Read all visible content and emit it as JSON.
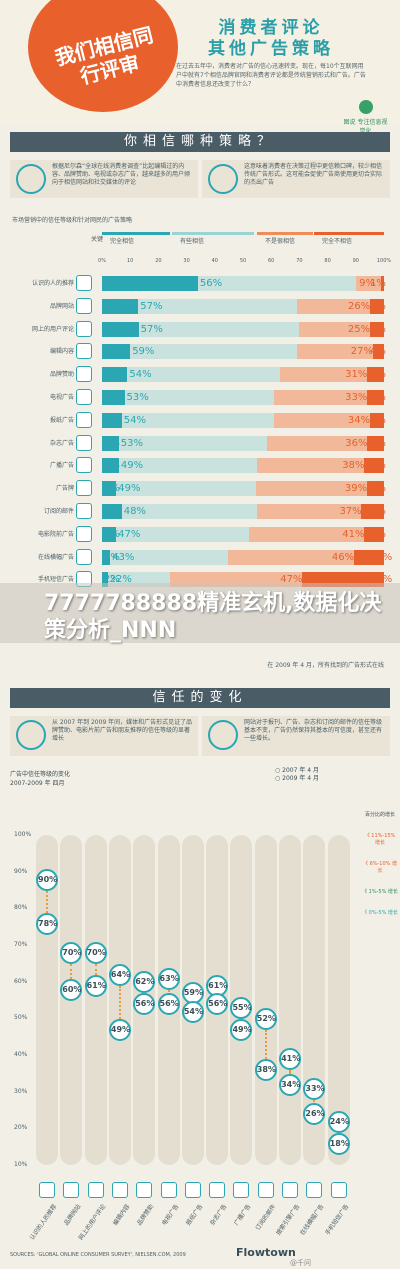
{
  "header": {
    "badge": "我们相信同行评审",
    "title_line1": "消费者评论",
    "title_line2": "其他广告策略",
    "desc": "在过去五年中，消费者对广告的信心迅速转变。现在，每10个互联网用户中就有7个相信品牌官网和消费者评论都是传统营销形式和广告。广告中消费者信息还改变了什么？",
    "logo": "图说 专注信息视觉化"
  },
  "section1": {
    "band_title": "你相信哪种策略？",
    "intro_left": "根据尼尔森“全球在线消费者调查”比起编辑过的内容、品牌赞助、电视或杂志广告，越来越多的用户倾向于相信网站和社交媒体的评论",
    "intro_right": "这意味着消费者在决策过程中更信赖口碑，较少相信传统广告形式。这可能会促使广告商使用更切合实际的杰出广告",
    "chart_label": "市场营销中的信任等级和针对网民的广告策略",
    "legend_key": "关键",
    "legend": [
      "完全相信",
      "有些相信",
      "不是很相信",
      "完全不相信"
    ],
    "scale": [
      "0%",
      "10",
      "20",
      "30",
      "40",
      "50",
      "60",
      "70",
      "80",
      "90",
      "100%"
    ],
    "footnote": "在 2009 年 4 月，所有找到的广告形式在线"
  },
  "chart_data": [
    {
      "type": "bar",
      "stacked": true,
      "orientation": "horizontal",
      "title": "市场营销中的信任等级和针对网民的广告策略",
      "series_names": [
        "完全相信",
        "有些相信",
        "不是很相信",
        "完全不相信"
      ],
      "colors": [
        "#2aa7b3",
        "#9ad3d3",
        "#f08c5a",
        "#e8602c"
      ],
      "xlim": [
        0,
        100
      ],
      "rows": [
        {
          "label": "认识的人的推荐",
          "values": [
            34,
            56,
            9,
            1
          ]
        },
        {
          "label": "品牌网站",
          "values": [
            13,
            57,
            26,
            5
          ]
        },
        {
          "label": "网上的用户评论",
          "values": [
            13,
            57,
            25,
            5
          ]
        },
        {
          "label": "编辑内容",
          "values": [
            10,
            59,
            27,
            4
          ]
        },
        {
          "label": "品牌赞助",
          "values": [
            9,
            54,
            31,
            6
          ]
        },
        {
          "label": "电视广告",
          "values": [
            8,
            53,
            33,
            6
          ]
        },
        {
          "label": "报纸广告",
          "values": [
            7,
            54,
            34,
            5
          ]
        },
        {
          "label": "杂志广告",
          "values": [
            6,
            53,
            36,
            6
          ]
        },
        {
          "label": "广播广告",
          "values": [
            6,
            49,
            38,
            7
          ]
        },
        {
          "label": "广告牌",
          "values": [
            5,
            49,
            39,
            6
          ]
        },
        {
          "label": "订阅的邮件",
          "values": [
            7,
            48,
            37,
            8
          ]
        },
        {
          "label": "电影院前广告",
          "values": [
            5,
            47,
            41,
            7
          ]
        },
        {
          "label": "在线横幅广告",
          "values": [
            3,
            43,
            46,
            11
          ]
        },
        {
          "label": "手机短信广告",
          "values": [
            2,
            22,
            47,
            29
          ]
        }
      ]
    },
    {
      "type": "scatter",
      "title": "广告中信任等级的变化",
      "subtitle": "2007-2009 年 四月",
      "ylim": [
        10,
        100
      ],
      "categories": [
        "认识的人的推荐",
        "品牌网站",
        "网上的用户评论",
        "编辑内容",
        "品牌赞助",
        "电视广告",
        "报纸广告",
        "杂志广告",
        "广播广告",
        "订阅的邮件",
        "搜索引擎广告",
        "在线横幅广告",
        "手机短信广告"
      ],
      "series": [
        {
          "name": "2007 年 4 月",
          "values": [
            78,
            60,
            61,
            49,
            56,
            56,
            54,
            56,
            49,
            38,
            34,
            26,
            18
          ]
        },
        {
          "name": "2009 年 4 月",
          "values": [
            90,
            70,
            70,
            64,
            62,
            63,
            59,
            61,
            55,
            52,
            41,
            33,
            24
          ]
        }
      ]
    }
  ],
  "section2": {
    "band_title": "信任的变化",
    "intro_left": "从 2007 年到 2009 年间，媒体和广告形式见证了品牌赞助、电影片前广告和朋友推荐的信任等级的显著增长",
    "intro_right": "网站对于报刊、广告、杂志和订阅的邮件的信任等级基本不变，广告仍然保持其基本的可信度，甚至还有一些增长。",
    "chart_label": "广告中信任等级的变化",
    "chart_sub": "2007-2009 年 四月",
    "legend_07": "2007 年 4 月",
    "legend_09": "2009 年 4 月",
    "right_key": "百分比的增长",
    "right_items": [
      "11%-15% 增长",
      "6%-10% 增长",
      "1%-5% 增长",
      "0%-5% 增长"
    ],
    "axis": [
      "100%",
      "90%",
      "80%",
      "70%",
      "60%",
      "50%",
      "40%",
      "30%",
      "20%",
      "10%"
    ],
    "source": "SOURCES: 'GLOBAL ONLINE CONSUMER SURVEY', NIELSEN.COM, 2009",
    "brand": "Flowtown"
  },
  "overlay": {
    "text": "7777788888精准玄机,数据化决策分析_NNN"
  },
  "watermark": "@千问",
  "colors": {
    "accent_teal": "#2aa7b3",
    "accent_orange": "#e8602c",
    "band": "#4a5c66"
  }
}
